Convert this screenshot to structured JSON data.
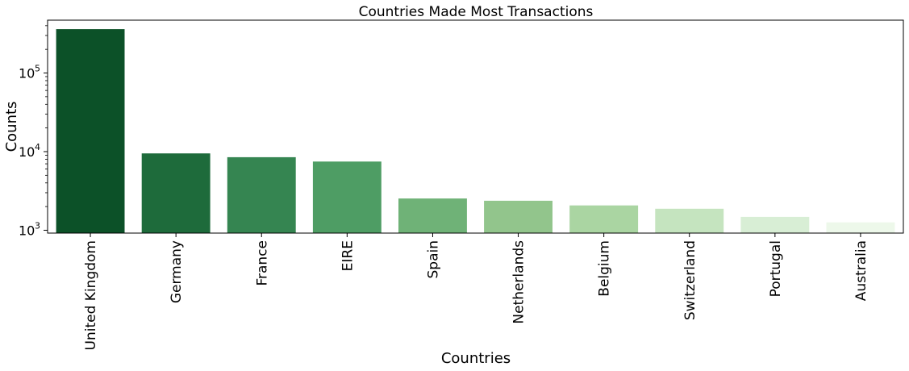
{
  "chart_data": {
    "type": "bar",
    "title": "Countries Made Most Transactions",
    "xlabel": "Countries",
    "ylabel": "Counts",
    "yscale": "log",
    "ylim": [
      920,
      470000
    ],
    "yticks": [
      {
        "value": 1000,
        "base": "10",
        "exp": "3"
      },
      {
        "value": 10000,
        "base": "10",
        "exp": "4"
      },
      {
        "value": 100000,
        "base": "10",
        "exp": "5"
      }
    ],
    "categories": [
      "United Kingdom",
      "Germany",
      "France",
      "EIRE",
      "Spain",
      "Netherlands",
      "Belgium",
      "Switzerland",
      "Portugal",
      "Australia"
    ],
    "values": [
      361878,
      9495,
      8491,
      7485,
      2533,
      2371,
      2069,
      1877,
      1480,
      1259
    ],
    "colors": [
      "#0c5128",
      "#1e6b3b",
      "#358551",
      "#4e9d64",
      "#6fb277",
      "#92c58c",
      "#aad5a2",
      "#c5e4bf",
      "#d8eed5",
      "#edf8ea"
    ],
    "grid": false,
    "legend": "none"
  }
}
